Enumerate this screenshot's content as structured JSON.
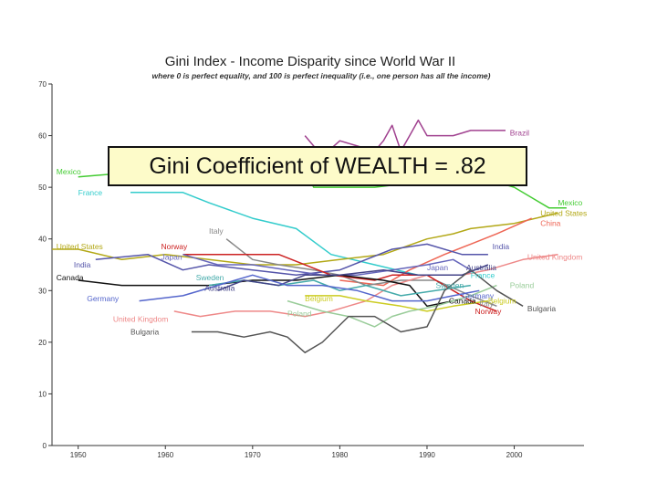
{
  "overlay": {
    "text": "Gini Coefficient of WEALTH = .82"
  },
  "chart_data": {
    "type": "line",
    "title": "Gini Index - Income Disparity since World War II",
    "subtitle": "where 0 is perfect equality, and 100 is perfect inequality (i.e., one person has all the income)",
    "xlabel": "",
    "ylabel": "",
    "xlim": [
      1947,
      2008
    ],
    "ylim": [
      0,
      70
    ],
    "xticks": [
      1950,
      1960,
      1970,
      1980,
      1990,
      2000
    ],
    "yticks": [
      0,
      10,
      20,
      30,
      40,
      50,
      60,
      70
    ],
    "grid": false,
    "series": [
      {
        "name": "Brazil",
        "color": "#a0418f",
        "x": [
          1976,
          1978,
          1980,
          1982,
          1984,
          1985,
          1986,
          1987,
          1988,
          1989,
          1990,
          1993,
          1995,
          1997,
          1999
        ],
        "y": [
          60,
          56,
          59,
          58,
          57,
          59,
          62,
          57,
          60,
          63,
          60,
          60,
          61,
          61,
          61
        ],
        "label_x": 1999.5,
        "label_y": 60.5
      },
      {
        "name": "Mexico",
        "color": "#44cc33",
        "x": [
          1950,
          1957,
          1963,
          1968,
          1975,
          1977,
          1984,
          1989,
          1992,
          1994,
          1996,
          1998,
          2000,
          2002,
          2004,
          2006
        ],
        "y": [
          52,
          53,
          55,
          57,
          57,
          50,
          50,
          51,
          53,
          53,
          52,
          51,
          50,
          48,
          46,
          46
        ],
        "label_x": 1947.5,
        "label_y": 53,
        "label_x2": 2005,
        "label_y2": 47
      },
      {
        "name": "France",
        "color": "#33cccc",
        "x": [
          1956,
          1962,
          1965,
          1970,
          1975,
          1979,
          1984,
          1989,
          1994
        ],
        "y": [
          49,
          49,
          47,
          44,
          42,
          37,
          35,
          33,
          33
        ],
        "label_x": 1950,
        "label_y": 49,
        "label_x2": 1995,
        "label_y2": 33
      },
      {
        "name": "United States",
        "color": "#b3a817",
        "x": [
          1947,
          1950,
          1955,
          1960,
          1965,
          1970,
          1975,
          1980,
          1985,
          1990,
          1993,
          1995,
          2000,
          2005
        ],
        "y": [
          38,
          38,
          36,
          37,
          36,
          35,
          35,
          36,
          37,
          40,
          41,
          42,
          43,
          45
        ],
        "label_x": 1947.5,
        "label_y": 38.5,
        "label_x2": 2003,
        "label_y2": 45
      },
      {
        "name": "China",
        "color": "#ee6655",
        "x": [
          1980,
          1985,
          1988,
          1992,
          1995,
          1998,
          2002
        ],
        "y": [
          32,
          31,
          34,
          37,
          39,
          41,
          44
        ],
        "label_x": 2003,
        "label_y": 43
      },
      {
        "name": "Italy",
        "color": "#888888",
        "x": [
          1967,
          1970,
          1973,
          1977,
          1980,
          1983,
          1987,
          1991,
          1995,
          1998
        ],
        "y": [
          40,
          36,
          35,
          34,
          33,
          31,
          32,
          32,
          29,
          27
        ],
        "label_x": 1965,
        "label_y": 41.5,
        "label_x2": 1996,
        "label_y2": 27.5
      },
      {
        "name": "India",
        "color": "#5555aa",
        "x": [
          1952,
          1958,
          1962,
          1965,
          1970,
          1975,
          1980,
          1983,
          1986,
          1990,
          1994,
          1997
        ],
        "y": [
          36,
          37,
          34,
          35,
          34,
          33,
          34,
          36,
          38,
          39,
          37,
          37
        ],
        "label_x": 1949.5,
        "label_y": 35,
        "label_x2": 1997.5,
        "label_y2": 38.5
      },
      {
        "name": "Norway",
        "color": "#cc2222",
        "x": [
          1962,
          1967,
          1973,
          1979,
          1984,
          1986,
          1990,
          1995,
          1998
        ],
        "y": [
          37,
          37,
          37,
          33,
          32,
          33,
          33,
          28,
          26
        ],
        "label_x": 1959.5,
        "label_y": 38.5,
        "label_x2": 1995.5,
        "label_y2": 26
      },
      {
        "name": "Japan",
        "color": "#6666bb",
        "x": [
          1962,
          1966,
          1970,
          1974,
          1978,
          1982,
          1986,
          1990,
          1993,
          1995
        ],
        "y": [
          37,
          35,
          35,
          34,
          33,
          33,
          34,
          35,
          36,
          34
        ],
        "label_x": 1959.5,
        "label_y": 36.5,
        "label_x2": 1990,
        "label_y2": 34.5
      },
      {
        "name": "United Kingdom",
        "color": "#ee8888",
        "x": [
          1961,
          1964,
          1968,
          1972,
          1976,
          1979,
          1983,
          1986,
          1990,
          1994,
          1997,
          2001,
          2005
        ],
        "y": [
          26,
          25,
          26,
          26,
          25,
          26,
          28,
          31,
          33,
          33,
          34,
          36,
          37
        ],
        "label_x": 1954,
        "label_y": 24.5,
        "label_x2": 2001.5,
        "label_y2": 36.5
      },
      {
        "name": "Canada",
        "color": "#111111",
        "x": [
          1950,
          1955,
          1960,
          1965,
          1970,
          1975,
          1980,
          1985,
          1988,
          1990,
          1993
        ],
        "y": [
          32,
          31,
          31,
          31,
          32,
          32,
          33,
          32,
          31,
          27,
          28
        ],
        "label_x": 1947.5,
        "label_y": 32.5,
        "label_x2": 1992.5,
        "label_y2": 28
      },
      {
        "name": "Sweden",
        "color": "#44aaaa",
        "x": [
          1965,
          1969,
          1973,
          1977,
          1980,
          1983,
          1987,
          1991,
          1995
        ],
        "y": [
          31,
          32,
          31,
          32,
          30,
          31,
          29,
          30,
          31
        ],
        "label_x": 1963.5,
        "label_y": 32.5,
        "label_x2": 1991,
        "label_y2": 31
      },
      {
        "name": "Australia",
        "color": "#444488",
        "x": [
          1966,
          1969,
          1973,
          1976,
          1980,
          1985,
          1989,
          1994,
          1997
        ],
        "y": [
          30,
          32,
          31,
          33,
          33,
          34,
          33,
          33,
          35
        ],
        "label_x": 1964.5,
        "label_y": 30.5,
        "label_x2": 1994.5,
        "label_y2": 34.5
      },
      {
        "name": "Germany",
        "color": "#5566cc",
        "x": [
          1957,
          1962,
          1966,
          1970,
          1974,
          1978,
          1982,
          1986,
          1990,
          1993,
          1996
        ],
        "y": [
          28,
          29,
          31,
          33,
          31,
          31,
          30,
          28,
          28,
          29,
          30
        ],
        "label_x": 1951,
        "label_y": 28.5,
        "label_x2": 1994,
        "label_y2": 29
      },
      {
        "name": "Belgium",
        "color": "#cccc22",
        "x": [
          1976,
          1980,
          1983,
          1987,
          1990,
          1993,
          1997
        ],
        "y": [
          29,
          29,
          28,
          27,
          26,
          27,
          28
        ],
        "label_x": 1976,
        "label_y": 28.5,
        "label_x2": 1997,
        "label_y2": 28
      },
      {
        "name": "Poland",
        "color": "#99cc99",
        "x": [
          1974,
          1978,
          1981,
          1984,
          1986,
          1988,
          1991,
          1995,
          1998
        ],
        "y": [
          28,
          26,
          25,
          23,
          25,
          26,
          27,
          29,
          31
        ],
        "label_x": 1974,
        "label_y": 25.5,
        "label_x2": 1999.5,
        "label_y2": 31
      },
      {
        "name": "Bulgaria",
        "color": "#555555",
        "x": [
          1963,
          1966,
          1969,
          1972,
          1974,
          1976,
          1978,
          1981,
          1984,
          1987,
          1990,
          1992,
          1995,
          1998,
          2001
        ],
        "y": [
          22,
          22,
          21,
          22,
          21,
          18,
          20,
          25,
          25,
          22,
          23,
          30,
          34,
          30,
          27
        ],
        "label_x": 1956,
        "label_y": 22,
        "label_x2": 2001.5,
        "label_y2": 26.5
      }
    ]
  }
}
